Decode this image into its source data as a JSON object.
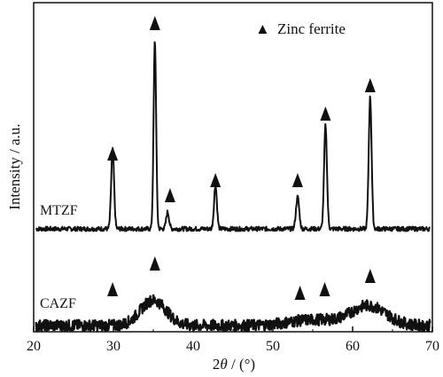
{
  "chart_data": {
    "type": "line",
    "xlabel_prefix": "2",
    "xlabel_symbol": "θ",
    "xlabel_suffix": " / (°)",
    "ylabel": "Intensity / a.u.",
    "xlim": [
      20,
      70
    ],
    "xticks": [
      20,
      30,
      40,
      50,
      60,
      70
    ],
    "grid": false,
    "legend": {
      "marker": "▲",
      "label": "Zinc ferrite",
      "placement": "top-right"
    },
    "series": [
      {
        "name": "MTZF",
        "baseline": 0,
        "noise": 0.012,
        "peaks": [
          {
            "x": 29.9,
            "y": 0.42,
            "w": 0.18
          },
          {
            "x": 35.2,
            "y": 1.0,
            "w": 0.16
          },
          {
            "x": 36.8,
            "y": 0.09,
            "w": 0.18
          },
          {
            "x": 42.8,
            "y": 0.23,
            "w": 0.18
          },
          {
            "x": 53.1,
            "y": 0.17,
            "w": 0.2
          },
          {
            "x": 56.6,
            "y": 0.55,
            "w": 0.18
          },
          {
            "x": 62.2,
            "y": 0.7,
            "w": 0.18
          }
        ],
        "markers": [
          29.9,
          35.2,
          37.1,
          42.8,
          53.1,
          56.6,
          62.2
        ]
      },
      {
        "name": "CAZF",
        "baseline": 0,
        "noise": 0.05,
        "peaks": [
          {
            "x": 35.0,
            "y": 0.22,
            "w": 1.6
          },
          {
            "x": 62.0,
            "y": 0.17,
            "w": 2.2
          },
          {
            "x": 55.0,
            "y": 0.05,
            "w": 3.0
          }
        ],
        "markers": [
          29.9,
          35.2,
          53.4,
          56.5,
          62.2
        ]
      }
    ]
  }
}
